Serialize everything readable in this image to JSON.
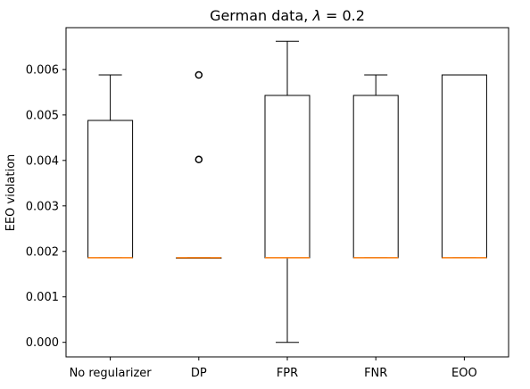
{
  "chart_data": {
    "type": "box",
    "title": "German data, λ =  0.2",
    "title_parts": {
      "prefix": "German data, ",
      "symbol": "λ",
      "suffix": " =  0.2"
    },
    "xlabel": "",
    "ylabel": "EEO violation",
    "ylim": [
      -0.00032,
      0.00692
    ],
    "yticks": [
      "0.000",
      "0.001",
      "0.002",
      "0.003",
      "0.004",
      "0.005",
      "0.006"
    ],
    "ytick_values": [
      0,
      0.001,
      0.002,
      0.003,
      0.004,
      0.005,
      0.006
    ],
    "grid": false,
    "categories": [
      "No regularizer",
      "DP",
      "FPR",
      "FNR",
      "EOO"
    ],
    "boxes": [
      {
        "category": "No regularizer",
        "whisker_low": 0.00186,
        "q1": 0.00186,
        "median": 0.00186,
        "q3": 0.00488,
        "whisker_high": 0.00588,
        "outliers": []
      },
      {
        "category": "DP",
        "whisker_low": 0.00186,
        "q1": 0.00186,
        "median": 0.00186,
        "q3": 0.00186,
        "whisker_high": 0.00186,
        "outliers": [
          0.00588,
          0.00402
        ]
      },
      {
        "category": "FPR",
        "whisker_low": 0.0,
        "q1": 0.00186,
        "median": 0.00186,
        "q3": 0.00543,
        "whisker_high": 0.00662,
        "outliers": []
      },
      {
        "category": "FNR",
        "whisker_low": 0.00186,
        "q1": 0.00186,
        "median": 0.00186,
        "q3": 0.00543,
        "whisker_high": 0.00588,
        "outliers": []
      },
      {
        "category": "EOO",
        "whisker_low": 0.00186,
        "q1": 0.00186,
        "median": 0.00186,
        "q3": 0.00588,
        "whisker_high": 0.00588,
        "outliers": []
      }
    ],
    "colors": {
      "box": "#000000",
      "median": "#ff7f0e",
      "background": "#ffffff"
    }
  }
}
